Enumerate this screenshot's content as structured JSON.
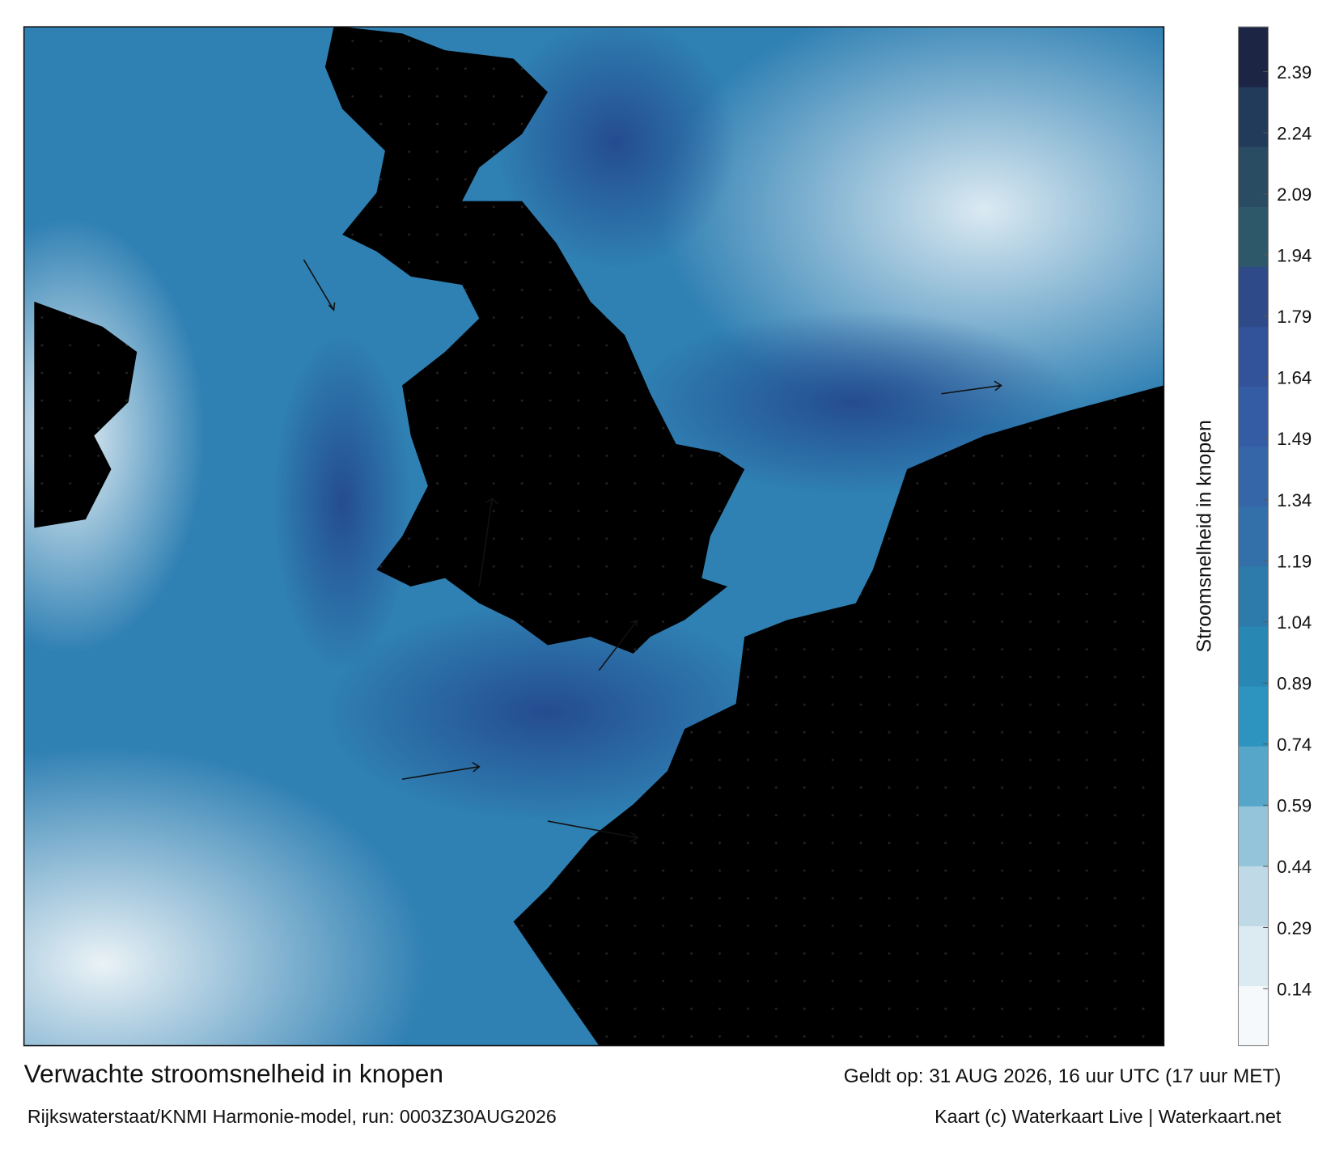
{
  "map": {
    "caption": {
      "title": "Verwachte stroomsnelheid in knopen",
      "valid": "Geldt op: 31 AUG 2026, 16 uur UTC (17 uur MET)",
      "model": "Rijkswaterstaat/KNMI Harmonie-model, run: 0003Z30AUG2026",
      "credit": "Kaart (c) Waterkaart Live | Waterkaart.net"
    },
    "colorbar": {
      "label": "Stroomsnelheid in knopen",
      "clim": [
        0,
        2.5
      ],
      "ticks": [
        0.14,
        0.29,
        0.44,
        0.59,
        0.74,
        0.89,
        1.04,
        1.19,
        1.34,
        1.49,
        1.64,
        1.79,
        1.94,
        2.09,
        2.24,
        2.39
      ],
      "colors": [
        "#f6f9fb",
        "#dceaf2",
        "#bfd9e7",
        "#93c4da",
        "#55a6c9",
        "#2c94bf",
        "#2987b3",
        "#2d7bab",
        "#3370aa",
        "#3566a8",
        "#345ca5",
        "#325399",
        "#2e4a89",
        "#2c5869",
        "#2a4c62",
        "#223b5a",
        "#1c2544"
      ]
    }
  }
}
